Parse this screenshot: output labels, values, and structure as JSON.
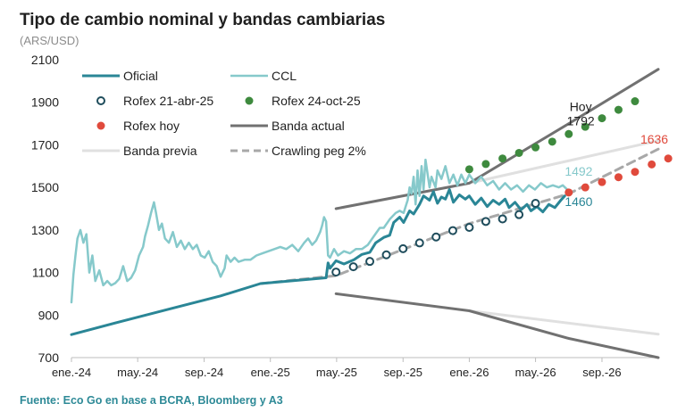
{
  "title": "Tipo de cambio nominal y bandas cambiarias",
  "unit": "(ARS/USD)",
  "source": "Fuente: Eco Go en base a BCRA, Bloomberg y A3",
  "chart_data": {
    "type": "line",
    "title": "Tipo de cambio nominal y bandas cambiarias",
    "ylabel": "(ARS/USD)",
    "xlabel": "",
    "xlim": [
      2024.0,
      2026.95
    ],
    "ylim": [
      700,
      2100
    ],
    "yticks": [
      700,
      900,
      1100,
      1300,
      1500,
      1700,
      1900,
      2100
    ],
    "xticks": [
      {
        "x": 2024.0,
        "label": "ene.-24"
      },
      {
        "x": 2024.333,
        "label": "may.-24"
      },
      {
        "x": 2024.667,
        "label": "sep.-24"
      },
      {
        "x": 2025.0,
        "label": "ene.-25"
      },
      {
        "x": 2025.333,
        "label": "may.-25"
      },
      {
        "x": 2025.667,
        "label": "sep.-25"
      },
      {
        "x": 2026.0,
        "label": "ene.-26"
      },
      {
        "x": 2026.333,
        "label": "may.-26"
      },
      {
        "x": 2026.667,
        "label": "sep.-26"
      }
    ],
    "grid": false,
    "legend_position": "top-left",
    "series": [
      {
        "name": "Oficial",
        "kind": "line",
        "color": "#2a8696",
        "width": 3,
        "points": [
          [
            2024.0,
            808
          ],
          [
            2024.25,
            870
          ],
          [
            2024.5,
            930
          ],
          [
            2024.75,
            990
          ],
          [
            2024.95,
            1048
          ],
          [
            2025.28,
            1075
          ],
          [
            2025.29,
            1145
          ],
          [
            2025.3,
            1120
          ],
          [
            2025.33,
            1155
          ],
          [
            2025.37,
            1140
          ],
          [
            2025.42,
            1160
          ],
          [
            2025.46,
            1185
          ],
          [
            2025.5,
            1195
          ],
          [
            2025.53,
            1240
          ],
          [
            2025.57,
            1265
          ],
          [
            2025.6,
            1275
          ],
          [
            2025.62,
            1335
          ],
          [
            2025.65,
            1360
          ],
          [
            2025.67,
            1335
          ],
          [
            2025.7,
            1390
          ],
          [
            2025.72,
            1375
          ],
          [
            2025.75,
            1420
          ],
          [
            2025.77,
            1460
          ],
          [
            2025.8,
            1440
          ],
          [
            2025.82,
            1480
          ],
          [
            2025.84,
            1425
          ],
          [
            2025.86,
            1455
          ],
          [
            2025.88,
            1445
          ],
          [
            2025.9,
            1490
          ],
          [
            2025.92,
            1430
          ],
          [
            2025.95,
            1465
          ],
          [
            2025.98,
            1445
          ],
          [
            2026.0,
            1460
          ],
          [
            2026.03,
            1420
          ],
          [
            2026.06,
            1450
          ],
          [
            2026.09,
            1410
          ],
          [
            2026.12,
            1440
          ],
          [
            2026.15,
            1420
          ],
          [
            2026.18,
            1445
          ],
          [
            2026.2,
            1405
          ],
          [
            2026.23,
            1430
          ],
          [
            2026.26,
            1395
          ],
          [
            2026.29,
            1420
          ],
          [
            2026.31,
            1390
          ],
          [
            2026.34,
            1410
          ],
          [
            2026.37,
            1385
          ],
          [
            2026.4,
            1420
          ],
          [
            2026.43,
            1405
          ],
          [
            2026.46,
            1440
          ],
          [
            2026.48,
            1460
          ]
        ]
      },
      {
        "name": "CCL",
        "kind": "line",
        "color": "#86c9cb",
        "width": 2.5,
        "points": [
          [
            2024.0,
            960
          ],
          [
            2024.01,
            1090
          ],
          [
            2024.02,
            1180
          ],
          [
            2024.03,
            1260
          ],
          [
            2024.045,
            1300
          ],
          [
            2024.06,
            1240
          ],
          [
            2024.075,
            1280
          ],
          [
            2024.09,
            1100
          ],
          [
            2024.105,
            1180
          ],
          [
            2024.12,
            1060
          ],
          [
            2024.14,
            1110
          ],
          [
            2024.16,
            1040
          ],
          [
            2024.18,
            1060
          ],
          [
            2024.2,
            1040
          ],
          [
            2024.22,
            1050
          ],
          [
            2024.24,
            1070
          ],
          [
            2024.26,
            1130
          ],
          [
            2024.28,
            1060
          ],
          [
            2024.3,
            1075
          ],
          [
            2024.32,
            1110
          ],
          [
            2024.34,
            1180
          ],
          [
            2024.36,
            1220
          ],
          [
            2024.37,
            1270
          ],
          [
            2024.385,
            1320
          ],
          [
            2024.4,
            1380
          ],
          [
            2024.415,
            1430
          ],
          [
            2024.425,
            1380
          ],
          [
            2024.44,
            1300
          ],
          [
            2024.455,
            1330
          ],
          [
            2024.47,
            1260
          ],
          [
            2024.49,
            1240
          ],
          [
            2024.51,
            1290
          ],
          [
            2024.53,
            1220
          ],
          [
            2024.55,
            1250
          ],
          [
            2024.57,
            1210
          ],
          [
            2024.59,
            1240
          ],
          [
            2024.61,
            1210
          ],
          [
            2024.63,
            1230
          ],
          [
            2024.65,
            1180
          ],
          [
            2024.67,
            1170
          ],
          [
            2024.69,
            1200
          ],
          [
            2024.71,
            1150
          ],
          [
            2024.73,
            1130
          ],
          [
            2024.75,
            1080
          ],
          [
            2024.77,
            1120
          ],
          [
            2024.78,
            1180
          ],
          [
            2024.8,
            1150
          ],
          [
            2024.82,
            1170
          ],
          [
            2024.84,
            1150
          ],
          [
            2024.87,
            1160
          ],
          [
            2024.9,
            1160
          ],
          [
            2024.93,
            1180
          ],
          [
            2024.96,
            1190
          ],
          [
            2024.99,
            1200
          ],
          [
            2025.02,
            1210
          ],
          [
            2025.05,
            1220
          ],
          [
            2025.08,
            1210
          ],
          [
            2025.11,
            1230
          ],
          [
            2025.14,
            1200
          ],
          [
            2025.17,
            1240
          ],
          [
            2025.19,
            1260
          ],
          [
            2025.21,
            1230
          ],
          [
            2025.23,
            1250
          ],
          [
            2025.25,
            1290
          ],
          [
            2025.26,
            1320
          ],
          [
            2025.27,
            1360
          ],
          [
            2025.28,
            1340
          ],
          [
            2025.29,
            1180
          ],
          [
            2025.3,
            1170
          ],
          [
            2025.32,
            1210
          ],
          [
            2025.34,
            1180
          ],
          [
            2025.37,
            1200
          ],
          [
            2025.4,
            1190
          ],
          [
            2025.43,
            1210
          ],
          [
            2025.46,
            1210
          ],
          [
            2025.49,
            1230
          ],
          [
            2025.52,
            1270
          ],
          [
            2025.55,
            1310
          ],
          [
            2025.57,
            1310
          ],
          [
            2025.6,
            1350
          ],
          [
            2025.63,
            1380
          ],
          [
            2025.65,
            1390
          ],
          [
            2025.67,
            1380
          ],
          [
            2025.69,
            1440
          ],
          [
            2025.7,
            1500
          ],
          [
            2025.71,
            1470
          ],
          [
            2025.72,
            1550
          ],
          [
            2025.73,
            1420
          ],
          [
            2025.74,
            1580
          ],
          [
            2025.75,
            1460
          ],
          [
            2025.76,
            1600
          ],
          [
            2025.77,
            1490
          ],
          [
            2025.78,
            1630
          ],
          [
            2025.8,
            1500
          ],
          [
            2025.81,
            1550
          ],
          [
            2025.83,
            1500
          ],
          [
            2025.84,
            1580
          ],
          [
            2025.86,
            1540
          ],
          [
            2025.88,
            1600
          ],
          [
            2025.9,
            1520
          ],
          [
            2025.92,
            1560
          ],
          [
            2025.94,
            1510
          ],
          [
            2025.96,
            1560
          ],
          [
            2025.98,
            1520
          ],
          [
            2026.0,
            1560
          ],
          [
            2026.03,
            1520
          ],
          [
            2026.06,
            1550
          ],
          [
            2026.09,
            1510
          ],
          [
            2026.12,
            1530
          ],
          [
            2026.15,
            1490
          ],
          [
            2026.18,
            1520
          ],
          [
            2026.21,
            1490
          ],
          [
            2026.24,
            1510
          ],
          [
            2026.27,
            1480
          ],
          [
            2026.3,
            1510
          ],
          [
            2026.33,
            1490
          ],
          [
            2026.36,
            1520
          ],
          [
            2026.39,
            1500
          ],
          [
            2026.42,
            1510
          ],
          [
            2026.45,
            1500
          ],
          [
            2026.47,
            1510
          ],
          [
            2026.49,
            1492
          ]
        ]
      },
      {
        "name": "Rofex 21-abr-25",
        "kind": "open_dots",
        "color": "#1f4d5c",
        "points": [
          [
            2025.33,
            1102
          ],
          [
            2025.417,
            1127
          ],
          [
            2025.5,
            1152
          ],
          [
            2025.583,
            1183
          ],
          [
            2025.667,
            1212
          ],
          [
            2025.75,
            1239
          ],
          [
            2025.833,
            1267
          ],
          [
            2025.917,
            1297
          ],
          [
            2026.0,
            1312
          ],
          [
            2026.083,
            1340
          ],
          [
            2026.167,
            1352
          ],
          [
            2026.25,
            1372
          ],
          [
            2026.333,
            1425
          ]
        ]
      },
      {
        "name": "Rofex 24-oct-25",
        "kind": "dots",
        "color": "#3e8a3e",
        "points": [
          [
            2026.0,
            1585
          ],
          [
            2026.083,
            1610
          ],
          [
            2026.167,
            1636
          ],
          [
            2026.25,
            1662
          ],
          [
            2026.333,
            1688
          ],
          [
            2026.417,
            1715
          ],
          [
            2026.5,
            1751
          ],
          [
            2026.583,
            1785
          ],
          [
            2026.667,
            1825
          ],
          [
            2026.75,
            1865
          ],
          [
            2026.833,
            1905
          ]
        ]
      },
      {
        "name": "Rofex hoy",
        "kind": "dots",
        "color": "#e04a3c",
        "points": [
          [
            2026.5,
            1476
          ],
          [
            2026.583,
            1500
          ],
          [
            2026.667,
            1525
          ],
          [
            2026.75,
            1548
          ],
          [
            2026.833,
            1573
          ],
          [
            2026.917,
            1608
          ],
          [
            2027.0,
            1636
          ]
        ]
      },
      {
        "name": "Banda actual",
        "kind": "line",
        "color": "#717171",
        "width": 3,
        "points_upper": [
          [
            2025.33,
            1400
          ],
          [
            2026.0,
            1520
          ],
          [
            2026.5,
            1800
          ],
          [
            2026.95,
            2055
          ]
        ],
        "points_lower": [
          [
            2025.33,
            1000
          ],
          [
            2026.0,
            920
          ],
          [
            2026.5,
            790
          ],
          [
            2026.95,
            700
          ]
        ]
      },
      {
        "name": "Banda previa",
        "kind": "line",
        "color": "#e0e0e0",
        "width": 3,
        "points_upper": [
          [
            2026.0,
            1520
          ],
          [
            2026.95,
            1720
          ]
        ],
        "points_lower": [
          [
            2026.0,
            920
          ],
          [
            2026.95,
            810
          ]
        ]
      },
      {
        "name": "Crawling peg 2%",
        "kind": "dashed",
        "color": "#a8a8a8",
        "width": 3,
        "points": [
          [
            2024.95,
            1048
          ],
          [
            2025.33,
            1085
          ],
          [
            2026.0,
            1330
          ],
          [
            2026.5,
            1470
          ],
          [
            2026.95,
            1680
          ]
        ]
      }
    ],
    "annotations": [
      {
        "text": "Hoy",
        "x": 2026.56,
        "y": 1860,
        "color": "#1f1f1f"
      },
      {
        "text": "1792",
        "x": 2026.56,
        "y": 1792,
        "color": "#1f1f1f"
      },
      {
        "text": "1492",
        "x": 2026.55,
        "y": 1555,
        "color": "#86c9cb"
      },
      {
        "text": "1460",
        "x": 2026.55,
        "y": 1412,
        "color": "#2a8696"
      },
      {
        "text": "1636",
        "x": 2026.93,
        "y": 1705,
        "color": "#e04a3c"
      }
    ]
  }
}
